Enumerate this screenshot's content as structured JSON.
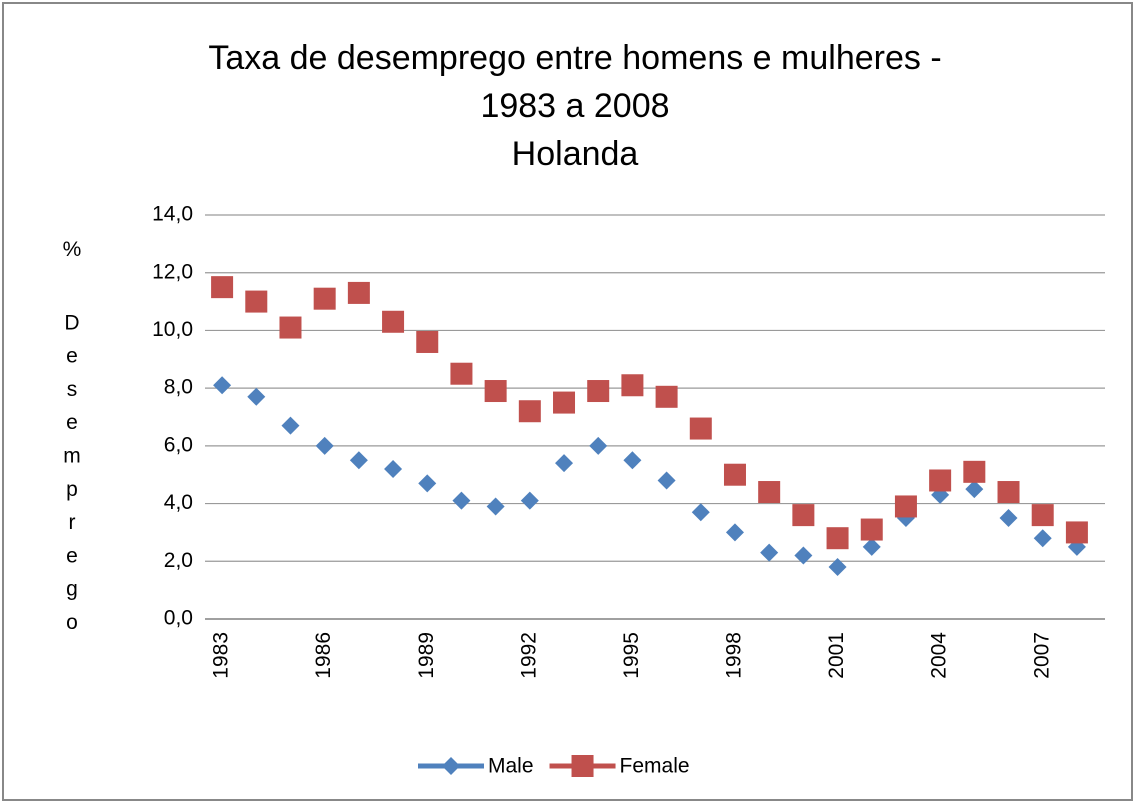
{
  "chart_data": {
    "type": "line",
    "title": [
      "Taxa de desemprego entre homens e mulheres -",
      "1983 a 2008",
      "Holanda"
    ],
    "ylabel": "% Desemprego",
    "categories": [
      "1983",
      null,
      null,
      "1986",
      null,
      null,
      "1989",
      null,
      null,
      "1992",
      null,
      null,
      "1995",
      null,
      null,
      "1998",
      null,
      null,
      "2001",
      null,
      null,
      "2004",
      null,
      null,
      "2007",
      null
    ],
    "series": [
      {
        "name": "Male",
        "color": "#4f81bd",
        "marker": "diamond",
        "values": [
          8.1,
          7.7,
          6.7,
          6.0,
          5.5,
          5.2,
          4.7,
          4.1,
          3.9,
          4.1,
          5.4,
          6.0,
          5.5,
          4.8,
          3.7,
          3.0,
          2.3,
          2.2,
          1.8,
          2.5,
          3.5,
          4.3,
          4.5,
          3.5,
          2.8,
          2.5
        ]
      },
      {
        "name": "Female",
        "color": "#c0504d",
        "marker": "square",
        "values": [
          11.5,
          11.0,
          10.1,
          11.1,
          11.3,
          10.3,
          9.6,
          8.5,
          7.9,
          7.2,
          7.5,
          7.9,
          8.1,
          7.7,
          6.6,
          5.0,
          4.4,
          3.6,
          2.8,
          3.1,
          3.9,
          4.8,
          5.1,
          4.4,
          3.6,
          3.0
        ]
      }
    ],
    "ylim": [
      0,
      14
    ],
    "yticks": [
      {
        "value": 0,
        "label": "0,0"
      },
      {
        "value": 2,
        "label": "2,0"
      },
      {
        "value": 4,
        "label": "4,0"
      },
      {
        "value": 6,
        "label": "6,0"
      },
      {
        "value": 8,
        "label": "8,0"
      },
      {
        "value": 10,
        "label": "10,0"
      },
      {
        "value": 12,
        "label": "12,0"
      },
      {
        "value": 14,
        "label": "14,0"
      }
    ],
    "grid": true,
    "legend": "bottom",
    "lines": false
  }
}
